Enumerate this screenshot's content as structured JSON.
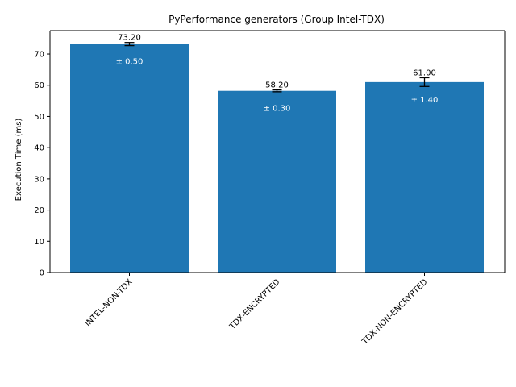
{
  "chart_data": {
    "type": "bar",
    "title": "PyPerformance generators (Group Intel-TDX)",
    "xlabel": "",
    "ylabel": "Execution Time (ms)",
    "ylim": [
      0,
      77.5
    ],
    "yticks": [
      0,
      10,
      20,
      30,
      40,
      50,
      60,
      70
    ],
    "grid": false,
    "categories": [
      "INTEL-NON-TDX",
      "TDX-ENCRYPTED",
      "TDX-NON-ENCRYPTED"
    ],
    "values": [
      73.2,
      58.2,
      61.0
    ],
    "errors": [
      0.5,
      0.3,
      1.4
    ],
    "value_labels": [
      "73.20",
      "58.20",
      "61.00"
    ],
    "error_labels": [
      "± 0.50",
      "± 0.30",
      "± 1.40"
    ],
    "bar_color": "#1f77b4"
  }
}
